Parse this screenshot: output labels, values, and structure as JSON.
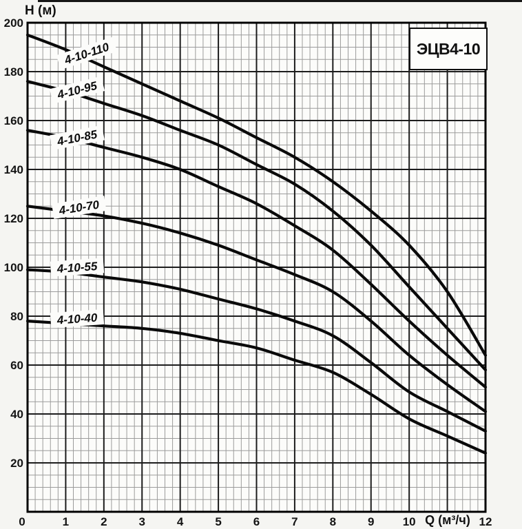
{
  "figure": {
    "title_box": "ЭЦВ4-10",
    "y_axis_title": "H (м)",
    "x_axis_title": "Q (м³/ч)"
  },
  "chart_data": {
    "type": "line",
    "title": "ЭЦВ4-10",
    "xlabel": "Q (м³/ч)",
    "ylabel": "H (м)",
    "xlim": [
      0,
      12
    ],
    "ylim": [
      0,
      200
    ],
    "x_major_step": 1,
    "x_minor_step": 0.2,
    "y_major_step": 20,
    "y_minor_step": 5,
    "grid": "major+minor, engineering graph paper",
    "legend_position": "labels inline above each curve",
    "x_ticks": [
      0,
      1,
      2,
      3,
      4,
      5,
      6,
      7,
      8,
      9,
      10,
      12
    ],
    "y_ticks": [
      20,
      40,
      60,
      80,
      100,
      120,
      140,
      160,
      180,
      200
    ],
    "x": [
      0,
      1,
      2,
      3,
      4,
      5,
      6,
      7,
      8,
      9,
      10,
      11,
      12
    ],
    "series": [
      {
        "name": "4-10-110",
        "values": [
          195,
          189,
          182,
          175,
          168,
          161,
          153,
          145,
          135,
          123,
          109,
          90,
          64
        ],
        "label_at": {
          "q": 1.55,
          "h": 187.5,
          "angle": -18
        }
      },
      {
        "name": "4-10-95",
        "values": [
          176,
          172,
          167,
          162,
          156,
          150,
          142,
          134,
          123,
          109,
          92,
          75,
          58
        ],
        "label_at": {
          "q": 1.3,
          "h": 172.5,
          "angle": -14
        }
      },
      {
        "name": "4-10-85",
        "values": [
          156,
          153,
          149,
          145,
          140,
          133,
          126,
          117,
          107,
          93,
          78,
          64,
          51
        ],
        "label_at": {
          "q": 1.3,
          "h": 153.0,
          "angle": -11
        }
      },
      {
        "name": "4-10-70",
        "values": [
          125,
          123,
          121,
          118,
          114,
          109,
          103,
          97,
          90,
          78,
          64,
          52,
          41
        ],
        "label_at": {
          "q": 1.35,
          "h": 124.5,
          "angle": -9
        }
      },
      {
        "name": "4-10-55",
        "values": [
          99,
          98,
          96,
          94,
          91,
          87,
          83,
          78,
          72,
          61,
          49,
          41,
          33
        ],
        "label_at": {
          "q": 1.3,
          "h": 100.0,
          "angle": -4
        }
      },
      {
        "name": "4-10-40",
        "values": [
          78,
          77,
          76,
          75,
          73,
          70,
          67,
          62,
          57,
          48,
          38,
          31,
          24
        ],
        "label_at": {
          "q": 1.3,
          "h": 79.0,
          "angle": -4
        }
      }
    ],
    "colors": {
      "curve": "#0a0a0a",
      "grid_minor": "#9b9b9b",
      "grid_major": "#1c1c1c",
      "frame": "#000000",
      "plot_background": "#fcfcfa",
      "page_background": "#f5f5f2",
      "text": "#141414"
    }
  }
}
